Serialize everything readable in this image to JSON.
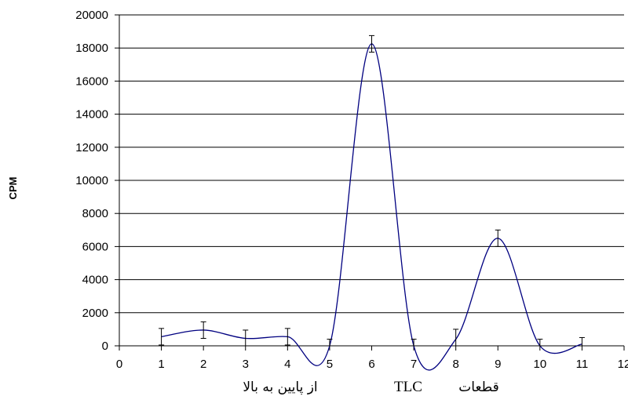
{
  "chart_data": {
    "type": "line",
    "smoothed": true,
    "x": [
      1,
      2,
      3,
      4,
      5,
      6,
      7,
      8,
      9,
      10,
      11
    ],
    "series": [
      {
        "values": [
          550,
          950,
          450,
          550,
          0,
          18250,
          0,
          400,
          6500,
          0,
          100
        ],
        "error": [
          500,
          500,
          500,
          500,
          400,
          500,
          400,
          600,
          500,
          400,
          400
        ],
        "color": "#000080"
      }
    ],
    "xlim": [
      0,
      12
    ],
    "ylim": [
      0,
      20000
    ],
    "xticks": [
      "0",
      "1",
      "2",
      "3",
      "4",
      "5",
      "6",
      "7",
      "8",
      "9",
      "10",
      "11",
      "12"
    ],
    "yticks": [
      "0",
      "2000",
      "4000",
      "6000",
      "8000",
      "10000",
      "12000",
      "14000",
      "16000",
      "18000",
      "20000"
    ],
    "ylabel": "CPM",
    "xlabel_parts": {
      "left": "از پایین به بالا",
      "middle": "TLC",
      "right": "قطعات"
    },
    "grid": "horizontal",
    "legend": "none"
  }
}
